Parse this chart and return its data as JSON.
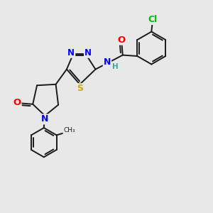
{
  "background_color": "#e8e8e8",
  "bond_color": "#1a1a1a",
  "atom_colors": {
    "O": "#ff0000",
    "N": "#0000ff",
    "S": "#ccaa00",
    "Cl": "#00bb00",
    "C": "#1a1a1a",
    "H": "#33aa99"
  },
  "font_size": 8.5,
  "lw": 1.4,
  "figsize": [
    3.0,
    3.0
  ],
  "dpi": 100
}
